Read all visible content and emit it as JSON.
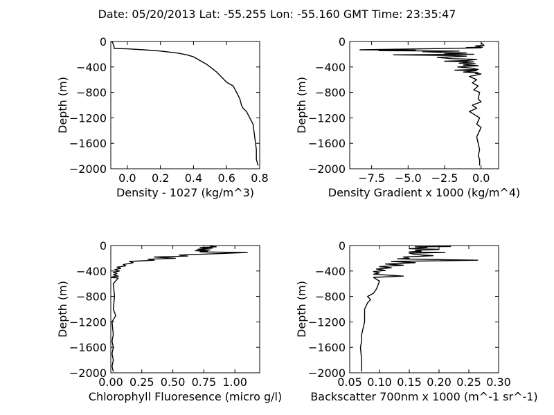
{
  "figure": {
    "title": "Date: 05/20/2013  Lat:  -55.255 Lon:  -55.160  GMT Time: 23:35:47"
  },
  "chart_data": [
    {
      "type": "line",
      "xlabel": "Density - 1027 (kg/m^3)",
      "ylabel": "Depth (m)",
      "xlim": [
        -0.1,
        0.8
      ],
      "ylim": [
        -2000,
        0
      ],
      "xticks": [
        0.0,
        0.2,
        0.4,
        0.6,
        0.8
      ],
      "xtick_labels": [
        "0.0",
        "0.2",
        "0.4",
        "0.6",
        "0.8"
      ],
      "yticks": [
        0,
        -400,
        -800,
        -1200,
        -1600,
        -2000
      ],
      "ytick_labels": [
        "0",
        "−400",
        "−800",
        "−1200",
        "−1600",
        "−2000"
      ],
      "grid": false,
      "series": [
        {
          "x": [
            -0.1,
            -0.09,
            -0.08,
            -0.08,
            0.0,
            0.1,
            0.2,
            0.3,
            0.36,
            0.4,
            0.44,
            0.48,
            0.51,
            0.54,
            0.57,
            0.6,
            0.64,
            0.66,
            0.68,
            0.69,
            0.7,
            0.72,
            0.74,
            0.76,
            0.77,
            0.78,
            0.78,
            0.79
          ],
          "y": [
            0,
            -10,
            -80,
            -110,
            -115,
            -130,
            -150,
            -180,
            -210,
            -240,
            -300,
            -360,
            -420,
            -480,
            -560,
            -640,
            -700,
            -800,
            -900,
            -1000,
            -1050,
            -1100,
            -1200,
            -1300,
            -1500,
            -1700,
            -1850,
            -1950
          ]
        }
      ]
    },
    {
      "type": "line",
      "xlabel": "Density Gradient x 1000 (kg/m^4)",
      "ylabel": "Depth (m)",
      "xlim": [
        -9.0,
        1.2
      ],
      "ylim": [
        -2000,
        0
      ],
      "xticks": [
        -7.5,
        -5.0,
        -2.5,
        0.0
      ],
      "xtick_labels": [
        "−7.5",
        "−5.0",
        "−2.5",
        "0.0"
      ],
      "yticks": [
        0,
        -400,
        -800,
        -1200,
        -1600,
        -2000
      ],
      "ytick_labels": [
        "0",
        "−400",
        "−800",
        "−1200",
        "−1600",
        "−2000"
      ],
      "grid": false,
      "series": [
        {
          "x": [
            0.0,
            0.1,
            0.2,
            -0.4,
            0.1,
            -1.0,
            0.0,
            -8.3,
            -4.5,
            -7.0,
            -1.5,
            -4.0,
            -3.0,
            -1.0,
            -2.5,
            -0.5,
            -6.0,
            -2.0,
            -1.0,
            -3.0,
            -2.0,
            -0.3,
            -1.0,
            -2.5,
            -0.5,
            -1.5,
            -0.4,
            -1.2,
            -0.2,
            -1.6,
            -0.6,
            -0.2,
            -1.8,
            -0.3,
            -1.2,
            -0.2,
            -0.4,
            0.0,
            -0.8,
            -0.3,
            -0.6,
            -0.2,
            -0.5,
            -0.1,
            -0.2,
            0.0,
            -0.6,
            -0.3,
            -0.8,
            -0.1,
            -0.3,
            0.0,
            -0.1,
            -0.3,
            -0.2,
            -0.1,
            -0.2,
            -0.1,
            -0.1,
            -0.1
          ],
          "y": [
            -20,
            -40,
            -60,
            -70,
            -90,
            -95,
            -100,
            -130,
            -135,
            -145,
            -150,
            -160,
            -170,
            -180,
            -195,
            -200,
            -210,
            -220,
            -230,
            -250,
            -270,
            -280,
            -300,
            -310,
            -320,
            -340,
            -350,
            -370,
            -380,
            -400,
            -420,
            -440,
            -450,
            -460,
            -480,
            -490,
            -500,
            -510,
            -550,
            -600,
            -650,
            -700,
            -760,
            -800,
            -900,
            -950,
            -1000,
            -1050,
            -1100,
            -1200,
            -1300,
            -1350,
            -1400,
            -1500,
            -1600,
            -1700,
            -1800,
            -1850,
            -1900,
            -1950
          ]
        }
      ]
    },
    {
      "type": "line",
      "xlabel": "Chlorophyll Fluoresence (micro g/l)",
      "ylabel": "Depth (m)",
      "xlim": [
        0.0,
        1.2
      ],
      "ylim": [
        -2000,
        0
      ],
      "xticks": [
        0.0,
        0.25,
        0.5,
        0.75,
        1.0
      ],
      "xtick_labels": [
        "0.00",
        "0.25",
        "0.50",
        "0.75",
        "1.00"
      ],
      "yticks": [
        0,
        -400,
        -800,
        -1200,
        -1600,
        -2000
      ],
      "ytick_labels": [
        "0",
        "−400",
        "−800",
        "−1200",
        "−1600",
        "−2000"
      ],
      "grid": false,
      "series": [
        {
          "x": [
            0.8,
            0.85,
            0.72,
            0.82,
            0.75,
            0.7,
            0.8,
            0.68,
            0.78,
            0.72,
            1.1,
            0.55,
            0.62,
            0.35,
            0.52,
            0.3,
            0.35,
            0.15,
            0.18,
            0.1,
            0.12,
            0.05,
            0.08,
            0.03,
            0.07,
            0.02,
            0.05,
            0.02,
            0.06,
            0.02,
            0.0,
            0.06,
            0.02,
            0.03,
            0.02,
            0.04,
            0.01,
            0.02,
            0.01,
            0.02,
            0.01,
            0.02,
            0.01,
            0.02
          ],
          "y": [
            -10,
            -20,
            -30,
            -40,
            -50,
            -60,
            -70,
            -80,
            -90,
            -100,
            -110,
            -150,
            -165,
            -180,
            -200,
            -215,
            -230,
            -250,
            -270,
            -300,
            -320,
            -340,
            -360,
            -380,
            -400,
            -420,
            -440,
            -460,
            -480,
            -490,
            -500,
            -510,
            -600,
            -800,
            -1000,
            -1100,
            -1200,
            -1400,
            -1500,
            -1600,
            -1700,
            -1800,
            -1900,
            -1980
          ]
        }
      ]
    },
    {
      "type": "line",
      "xlabel": "Backscatter 700nm x 1000 (m^-1 sr^-1)",
      "ylabel": "Depth (m)",
      "xlim": [
        0.05,
        0.3
      ],
      "ylim": [
        -2000,
        0
      ],
      "xticks": [
        0.05,
        0.1,
        0.15,
        0.2,
        0.25,
        0.3
      ],
      "xtick_labels": [
        "0.05",
        "0.10",
        "0.15",
        "0.20",
        "0.25",
        "0.30"
      ],
      "yticks": [
        0,
        -400,
        -800,
        -1200,
        -1600,
        -2000
      ],
      "ytick_labels": [
        "0",
        "−400",
        "−800",
        "−1200",
        "−1600",
        "−2000"
      ],
      "grid": false,
      "series": [
        {
          "x": [
            0.22,
            0.16,
            0.18,
            0.15,
            0.2,
            0.16,
            0.17,
            0.15,
            0.21,
            0.15,
            0.16,
            0.19,
            0.14,
            0.15,
            0.13,
            0.265,
            0.12,
            0.16,
            0.11,
            0.14,
            0.1,
            0.12,
            0.095,
            0.11,
            0.09,
            0.1,
            0.09,
            0.14,
            0.09,
            0.1,
            0.095,
            0.09,
            0.08,
            0.085,
            0.08,
            0.075,
            0.075,
            0.07,
            0.07,
            0.068,
            0.07,
            0.07
          ],
          "y": [
            -15,
            -20,
            -35,
            -50,
            -60,
            -75,
            -90,
            -100,
            -110,
            -120,
            -140,
            -160,
            -180,
            -200,
            -210,
            -230,
            -250,
            -270,
            -290,
            -310,
            -330,
            -350,
            -370,
            -390,
            -410,
            -430,
            -450,
            -480,
            -500,
            -560,
            -680,
            -750,
            -800,
            -850,
            -900,
            -1000,
            -1200,
            -1400,
            -1500,
            -1600,
            -1800,
            -1980
          ]
        }
      ]
    }
  ]
}
